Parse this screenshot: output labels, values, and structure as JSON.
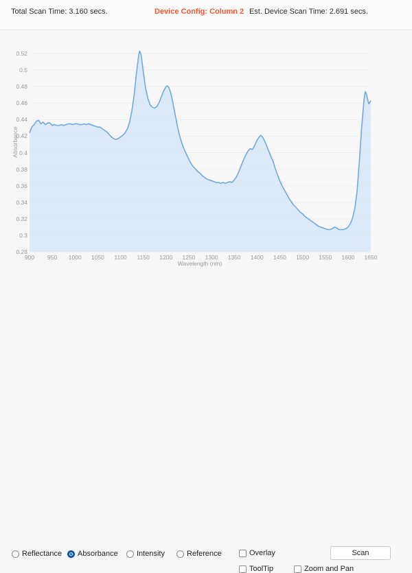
{
  "header": {
    "total_scan_time": "Total Scan Time: 3.160 secs.",
    "device_config": "Device Config: Column 2",
    "est_device_scan_time": "Est. Device Scan Time: 2.691 secs.",
    "device_config_color": "#f0572a"
  },
  "chart_data": {
    "type": "area",
    "title": "",
    "xlabel": "Wavelength (nm)",
    "ylabel": "Absorbance",
    "xlim": [
      900,
      1650
    ],
    "ylim": [
      0.28,
      0.52
    ],
    "grid": "horizontal-only",
    "x_ticks": [
      "900",
      "950",
      "1000",
      "1050",
      "1100",
      "1150",
      "1200",
      "1250",
      "1300",
      "1350",
      "1400",
      "1450",
      "1500",
      "1550",
      "1600",
      "1650"
    ],
    "y_ticks": [
      {
        "label": "0.52",
        "value": 0.52
      },
      {
        "label": "0.5",
        "value": 0.5
      },
      {
        "label": "0.48",
        "value": 0.48
      },
      {
        "label": "0.46",
        "value": 0.46
      },
      {
        "label": "0.44",
        "value": 0.44
      },
      {
        "label": "0.42",
        "value": 0.42
      },
      {
        "label": "0.4",
        "value": 0.4
      },
      {
        "label": "0.38",
        "value": 0.38
      },
      {
        "label": "0.36",
        "value": 0.36
      },
      {
        "label": "0.34",
        "value": 0.34
      },
      {
        "label": "0.32",
        "value": 0.32
      },
      {
        "label": "0.3",
        "value": 0.3
      },
      {
        "label": "0.28",
        "value": 0.28
      }
    ],
    "colors": {
      "line": "#6fa9e2",
      "fill": "#d7e7f7",
      "grid": "#ececee",
      "tick_text": "#97999e"
    },
    "series": [
      {
        "name": "Absorbance",
        "points": [
          [
            900,
            0.424
          ],
          [
            905,
            0.431
          ],
          [
            910,
            0.434
          ],
          [
            915,
            0.438
          ],
          [
            920,
            0.439
          ],
          [
            925,
            0.435
          ],
          [
            930,
            0.437
          ],
          [
            935,
            0.434
          ],
          [
            940,
            0.436
          ],
          [
            945,
            0.436
          ],
          [
            950,
            0.433
          ],
          [
            955,
            0.434
          ],
          [
            960,
            0.433
          ],
          [
            965,
            0.433
          ],
          [
            970,
            0.434
          ],
          [
            975,
            0.433
          ],
          [
            980,
            0.434
          ],
          [
            985,
            0.435
          ],
          [
            990,
            0.435
          ],
          [
            995,
            0.434
          ],
          [
            1000,
            0.435
          ],
          [
            1005,
            0.435
          ],
          [
            1010,
            0.434
          ],
          [
            1015,
            0.434
          ],
          [
            1020,
            0.435
          ],
          [
            1025,
            0.434
          ],
          [
            1030,
            0.435
          ],
          [
            1035,
            0.434
          ],
          [
            1040,
            0.433
          ],
          [
            1045,
            0.432
          ],
          [
            1050,
            0.431
          ],
          [
            1055,
            0.431
          ],
          [
            1060,
            0.429
          ],
          [
            1065,
            0.427
          ],
          [
            1070,
            0.425
          ],
          [
            1075,
            0.422
          ],
          [
            1080,
            0.419
          ],
          [
            1085,
            0.417
          ],
          [
            1090,
            0.416
          ],
          [
            1095,
            0.417
          ],
          [
            1100,
            0.419
          ],
          [
            1105,
            0.421
          ],
          [
            1110,
            0.424
          ],
          [
            1115,
            0.429
          ],
          [
            1120,
            0.437
          ],
          [
            1125,
            0.451
          ],
          [
            1130,
            0.47
          ],
          [
            1135,
            0.496
          ],
          [
            1140,
            0.518
          ],
          [
            1142,
            0.523
          ],
          [
            1145,
            0.519
          ],
          [
            1150,
            0.498
          ],
          [
            1155,
            0.478
          ],
          [
            1160,
            0.466
          ],
          [
            1165,
            0.458
          ],
          [
            1170,
            0.455
          ],
          [
            1175,
            0.454
          ],
          [
            1180,
            0.456
          ],
          [
            1185,
            0.461
          ],
          [
            1190,
            0.468
          ],
          [
            1195,
            0.475
          ],
          [
            1200,
            0.48
          ],
          [
            1203,
            0.481
          ],
          [
            1206,
            0.479
          ],
          [
            1210,
            0.473
          ],
          [
            1215,
            0.461
          ],
          [
            1220,
            0.446
          ],
          [
            1225,
            0.432
          ],
          [
            1230,
            0.42
          ],
          [
            1235,
            0.411
          ],
          [
            1240,
            0.404
          ],
          [
            1245,
            0.398
          ],
          [
            1250,
            0.392
          ],
          [
            1255,
            0.387
          ],
          [
            1260,
            0.383
          ],
          [
            1265,
            0.38
          ],
          [
            1270,
            0.377
          ],
          [
            1275,
            0.375
          ],
          [
            1280,
            0.372
          ],
          [
            1285,
            0.37
          ],
          [
            1290,
            0.368
          ],
          [
            1295,
            0.367
          ],
          [
            1300,
            0.366
          ],
          [
            1305,
            0.365
          ],
          [
            1310,
            0.364
          ],
          [
            1315,
            0.364
          ],
          [
            1320,
            0.363
          ],
          [
            1325,
            0.364
          ],
          [
            1330,
            0.363
          ],
          [
            1335,
            0.364
          ],
          [
            1340,
            0.365
          ],
          [
            1345,
            0.364
          ],
          [
            1350,
            0.367
          ],
          [
            1355,
            0.371
          ],
          [
            1360,
            0.377
          ],
          [
            1365,
            0.384
          ],
          [
            1370,
            0.391
          ],
          [
            1375,
            0.397
          ],
          [
            1380,
            0.402
          ],
          [
            1385,
            0.405
          ],
          [
            1390,
            0.404
          ],
          [
            1395,
            0.409
          ],
          [
            1400,
            0.415
          ],
          [
            1405,
            0.419
          ],
          [
            1408,
            0.421
          ],
          [
            1412,
            0.419
          ],
          [
            1415,
            0.416
          ],
          [
            1420,
            0.41
          ],
          [
            1425,
            0.403
          ],
          [
            1430,
            0.396
          ],
          [
            1435,
            0.39
          ],
          [
            1440,
            0.381
          ],
          [
            1445,
            0.373
          ],
          [
            1450,
            0.366
          ],
          [
            1455,
            0.36
          ],
          [
            1460,
            0.355
          ],
          [
            1465,
            0.35
          ],
          [
            1470,
            0.345
          ],
          [
            1475,
            0.341
          ],
          [
            1480,
            0.337
          ],
          [
            1485,
            0.334
          ],
          [
            1490,
            0.331
          ],
          [
            1495,
            0.328
          ],
          [
            1500,
            0.326
          ],
          [
            1505,
            0.323
          ],
          [
            1510,
            0.321
          ],
          [
            1515,
            0.319
          ],
          [
            1520,
            0.317
          ],
          [
            1525,
            0.315
          ],
          [
            1530,
            0.313
          ],
          [
            1535,
            0.311
          ],
          [
            1540,
            0.31
          ],
          [
            1545,
            0.309
          ],
          [
            1550,
            0.308
          ],
          [
            1555,
            0.307
          ],
          [
            1560,
            0.307
          ],
          [
            1565,
            0.308
          ],
          [
            1570,
            0.31
          ],
          [
            1575,
            0.309
          ],
          [
            1580,
            0.307
          ],
          [
            1585,
            0.307
          ],
          [
            1590,
            0.307
          ],
          [
            1595,
            0.308
          ],
          [
            1600,
            0.31
          ],
          [
            1605,
            0.314
          ],
          [
            1610,
            0.321
          ],
          [
            1615,
            0.333
          ],
          [
            1620,
            0.354
          ],
          [
            1625,
            0.39
          ],
          [
            1630,
            0.431
          ],
          [
            1635,
            0.464
          ],
          [
            1638,
            0.474
          ],
          [
            1641,
            0.47
          ],
          [
            1644,
            0.462
          ],
          [
            1646,
            0.459
          ],
          [
            1648,
            0.461
          ],
          [
            1650,
            0.463
          ]
        ]
      }
    ]
  },
  "controls": {
    "radios": [
      {
        "label": "Reflectance",
        "checked": false
      },
      {
        "label": "Absorbance",
        "checked": true
      },
      {
        "label": "Intensity",
        "checked": false
      },
      {
        "label": "Reference",
        "checked": false
      }
    ],
    "checkboxes": [
      {
        "label": "Overlay",
        "checked": false
      },
      {
        "label": "ToolTip",
        "checked": false
      },
      {
        "label": "Zoom and Pan",
        "checked": false
      }
    ],
    "scan_label": "Scan",
    "radio_accent": "#0b57a8"
  }
}
